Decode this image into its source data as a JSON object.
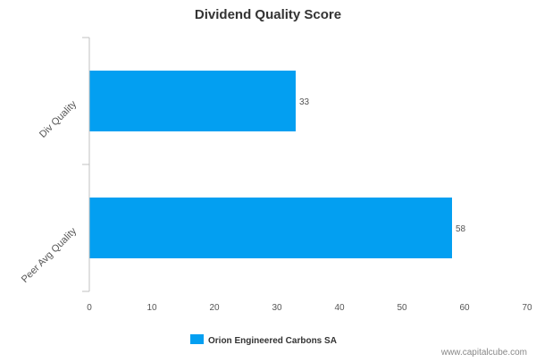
{
  "chart_data": {
    "type": "bar",
    "orientation": "horizontal",
    "title": "Dividend Quality Score",
    "categories": [
      "Div Quality",
      "Peer Avg Quality"
    ],
    "series": [
      {
        "name": "Orion Engineered Carbons SA",
        "values": [
          33,
          58
        ],
        "color": "#039ff1"
      }
    ],
    "x_ticks": [
      "0",
      "10",
      "20",
      "30",
      "40",
      "50",
      "60",
      "70"
    ],
    "xlim": [
      0,
      70
    ],
    "data_labels": [
      "33",
      "58"
    ],
    "grid": false,
    "legend": {
      "position": "bottom"
    }
  },
  "watermark": "www.capitalcube.com",
  "colors": {
    "bar": "#039ff1",
    "axis": "#c0c0c0",
    "text": "#555555",
    "title": "#333333"
  }
}
